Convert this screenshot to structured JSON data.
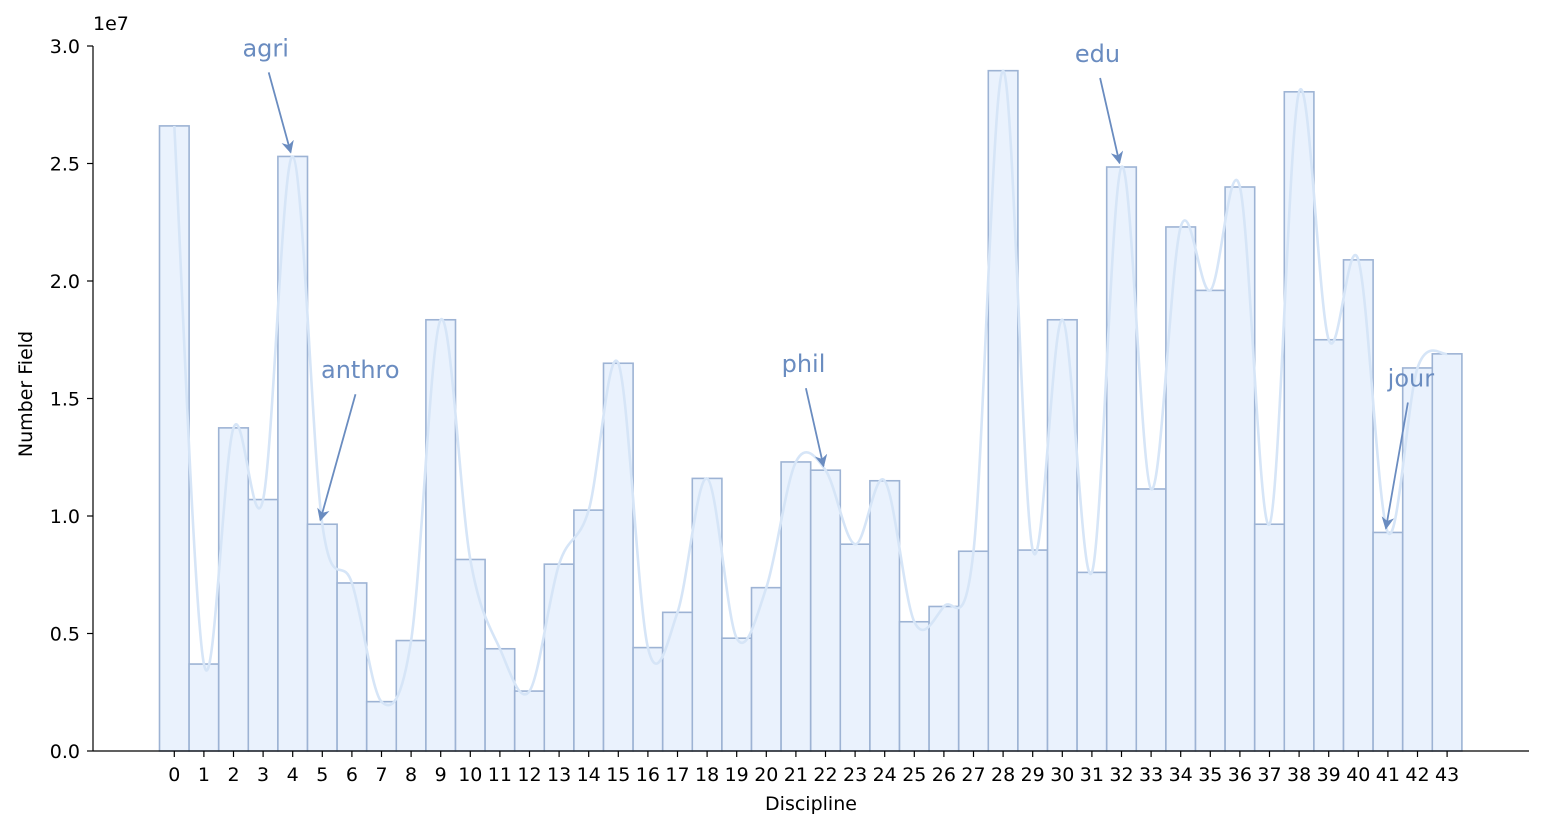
{
  "chart_data": {
    "type": "bar",
    "xlabel": "Discipline",
    "ylabel": "Number Field",
    "y_offset_label": "1e7",
    "ylim": [
      0,
      30000000
    ],
    "yticks": [
      0,
      5000000,
      10000000,
      15000000,
      20000000,
      25000000,
      30000000
    ],
    "ytick_labels": [
      "0.0",
      "0.5",
      "1.0",
      "1.5",
      "2.0",
      "2.5",
      "3.0"
    ],
    "categories": [
      "0",
      "1",
      "2",
      "3",
      "4",
      "5",
      "6",
      "7",
      "8",
      "9",
      "10",
      "11",
      "12",
      "13",
      "14",
      "15",
      "16",
      "17",
      "18",
      "19",
      "20",
      "21",
      "22",
      "23",
      "24",
      "25",
      "26",
      "27",
      "28",
      "29",
      "30",
      "31",
      "32",
      "33",
      "34",
      "35",
      "36",
      "37",
      "38",
      "39",
      "40",
      "41",
      "42",
      "43"
    ],
    "values": [
      26600000,
      3700000,
      13750000,
      10700000,
      25300000,
      9650000,
      7150000,
      2100000,
      4700000,
      18350000,
      8150000,
      4350000,
      2550000,
      7950000,
      10250000,
      16500000,
      4400000,
      5900000,
      11600000,
      4800000,
      6950000,
      12300000,
      11950000,
      8800000,
      11500000,
      5500000,
      6150000,
      8500000,
      28950000,
      8550000,
      18350000,
      7600000,
      24850000,
      11150000,
      22300000,
      19600000,
      24000000,
      9650000,
      28050000,
      17500000,
      20900000,
      9300000,
      16300000,
      16900000
    ],
    "kde_line": true,
    "grid": false,
    "colors": {
      "bar_fill": "#eaf2fd",
      "bar_edge": "#9db3d4",
      "kde": "#d6e5f7",
      "annotation": "#6a8cc0"
    },
    "annotations": [
      {
        "text": "agri",
        "target_index": 4
      },
      {
        "text": "anthro",
        "target_index": 5
      },
      {
        "text": "phil",
        "target_index": 22
      },
      {
        "text": "edu",
        "target_index": 32
      },
      {
        "text": "jour",
        "target_index": 41
      }
    ]
  }
}
